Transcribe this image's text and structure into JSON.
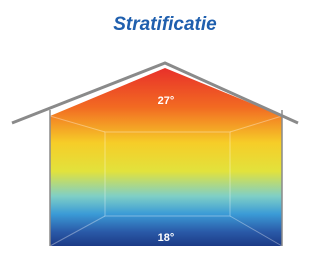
{
  "title": "Stratificatie",
  "labels": {
    "top": "27°",
    "bottom": "18°"
  }
}
